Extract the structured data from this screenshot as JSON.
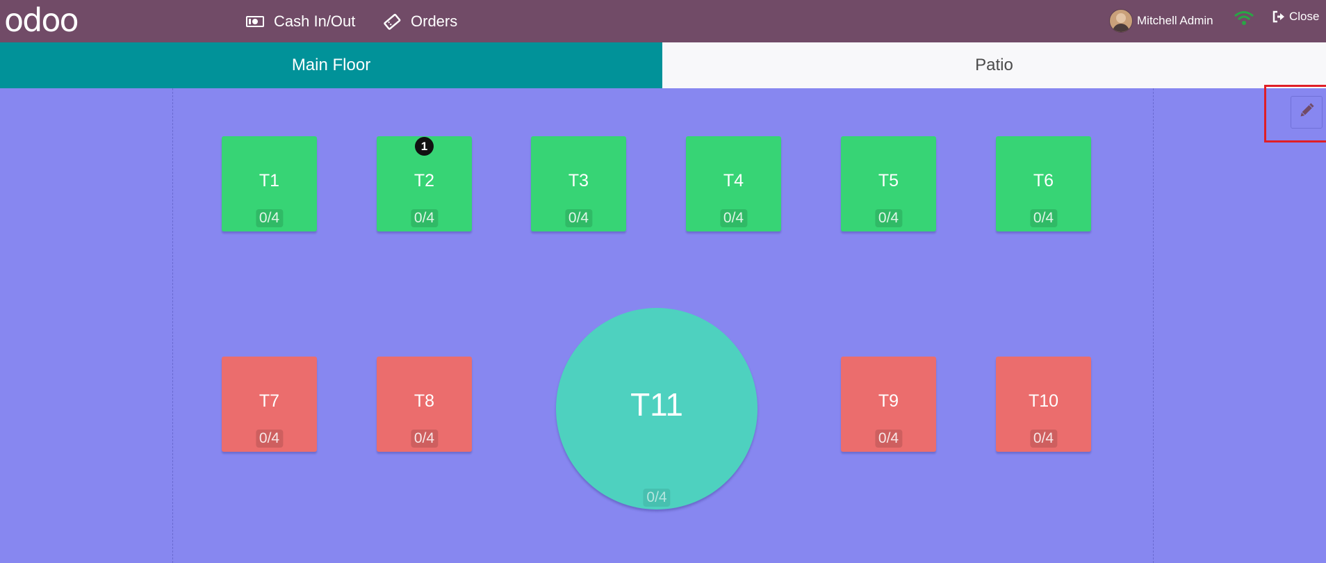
{
  "brand": {
    "logo_text": "odoo"
  },
  "header": {
    "cash_label": "Cash In/Out",
    "orders_label": "Orders",
    "user_name": "Mitchell Admin",
    "close_label": "Close",
    "wifi_color": "#28a745"
  },
  "floors": [
    {
      "label": "Main Floor",
      "active": true
    },
    {
      "label": "Patio",
      "active": false
    }
  ],
  "tables": {
    "t1": {
      "name": "T1",
      "seats": "0/4",
      "color": "#37d475"
    },
    "t2": {
      "name": "T2",
      "seats": "0/4",
      "color": "#37d475",
      "order_count": "1"
    },
    "t3": {
      "name": "T3",
      "seats": "0/4",
      "color": "#37d475"
    },
    "t4": {
      "name": "T4",
      "seats": "0/4",
      "color": "#37d475"
    },
    "t5": {
      "name": "T5",
      "seats": "0/4",
      "color": "#37d475"
    },
    "t6": {
      "name": "T6",
      "seats": "0/4",
      "color": "#37d475"
    },
    "t7": {
      "name": "T7",
      "seats": "0/4",
      "color": "#eb6d6d"
    },
    "t8": {
      "name": "T8",
      "seats": "0/4",
      "color": "#eb6d6d"
    },
    "t9": {
      "name": "T9",
      "seats": "0/4",
      "color": "#eb6d6d"
    },
    "t10": {
      "name": "T10",
      "seats": "0/4",
      "color": "#eb6d6d"
    },
    "t11": {
      "name": "T11",
      "seats": "0/4",
      "color": "#4ed1bf",
      "shape": "round"
    }
  },
  "floor_background": "#8787f0",
  "edit": {
    "icon": "pencil-icon"
  }
}
